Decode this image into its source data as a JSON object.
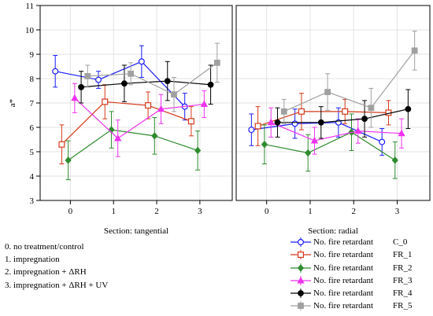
{
  "chart_data": {
    "type": "line",
    "ylabel": "a*",
    "ylim": [
      3,
      11
    ],
    "yticks": [
      "3",
      "4",
      "5",
      "6",
      "7",
      "8",
      "9",
      "10",
      "11"
    ],
    "x_categories": [
      "0",
      "1",
      "2",
      "3"
    ],
    "panels": [
      {
        "xlabel": "Section: tangential",
        "series": [
          {
            "group": "C_0",
            "color": "#1a1aff",
            "marker": "circle",
            "x": [
              -0.35,
              0.65,
              1.65,
              2.65
            ],
            "y": [
              8.3,
              7.95,
              8.7,
              6.85
            ],
            "err": [
              0.65,
              0.35,
              0.65,
              0.55
            ]
          },
          {
            "group": "FR_1",
            "color": "#d43a1a",
            "marker": "square",
            "x": [
              -0.2,
              0.8,
              1.8,
              2.8
            ],
            "y": [
              5.3,
              7.05,
              6.9,
              6.25
            ],
            "err": [
              0.8,
              0.7,
              0.55,
              0.6
            ]
          },
          {
            "group": "FR_2",
            "color": "#2e8b2e",
            "marker": "diamond",
            "x": [
              -0.05,
              0.95,
              1.95,
              2.95
            ],
            "y": [
              4.65,
              5.9,
              5.65,
              5.05
            ],
            "err": [
              0.8,
              0.75,
              0.75,
              0.8
            ]
          },
          {
            "group": "FR_3",
            "color": "#ee33ee",
            "marker": "triangle",
            "x": [
              0.1,
              1.1,
              2.1,
              3.1
            ],
            "y": [
              7.2,
              5.55,
              6.75,
              6.95
            ],
            "err": [
              0.6,
              0.75,
              0.6,
              0.55
            ]
          },
          {
            "group": "FR_4",
            "color": "#000000",
            "marker": "circle-filled",
            "x": [
              0.25,
              1.25,
              2.25,
              3.25
            ],
            "y": [
              7.65,
              7.8,
              7.9,
              7.75
            ],
            "err": [
              0.65,
              0.75,
              0.8,
              0.8
            ]
          },
          {
            "group": "FR_5",
            "color": "#a0a0a0",
            "marker": "square-filled",
            "x": [
              0.4,
              1.4,
              2.4,
              3.4
            ],
            "y": [
              8.1,
              8.2,
              7.35,
              8.65
            ],
            "err": [
              0.45,
              0.45,
              0.7,
              0.8
            ]
          }
        ]
      },
      {
        "xlabel": "Section: radial",
        "series": [
          {
            "group": "C_0",
            "color": "#1a1aff",
            "marker": "circle",
            "x": [
              -0.35,
              0.65,
              1.65,
              2.65
            ],
            "y": [
              5.9,
              6.15,
              6.2,
              5.4
            ],
            "err": [
              0.65,
              0.6,
              0.6,
              0.55
            ]
          },
          {
            "group": "FR_1",
            "color": "#d43a1a",
            "marker": "square",
            "x": [
              -0.2,
              0.8,
              1.8,
              2.8
            ],
            "y": [
              6.05,
              6.65,
              6.65,
              6.6
            ],
            "err": [
              0.8,
              0.75,
              0.5,
              0.5
            ]
          },
          {
            "group": "FR_2",
            "color": "#2e8b2e",
            "marker": "diamond",
            "x": [
              -0.05,
              0.95,
              1.95,
              2.95
            ],
            "y": [
              5.3,
              4.95,
              5.8,
              4.65
            ],
            "err": [
              0.8,
              0.75,
              0.75,
              0.75
            ]
          },
          {
            "group": "FR_3",
            "color": "#ee33ee",
            "marker": "triangle",
            "x": [
              0.1,
              1.1,
              2.1,
              3.1
            ],
            "y": [
              6.2,
              5.45,
              5.85,
              5.75
            ],
            "err": [
              0.6,
              0.55,
              0.5,
              0.6
            ]
          },
          {
            "group": "FR_4",
            "color": "#000000",
            "marker": "circle-filled",
            "x": [
              0.25,
              1.25,
              2.25,
              3.25
            ],
            "y": [
              6.2,
              6.2,
              6.35,
              6.75
            ],
            "err": [
              0.6,
              0.65,
              0.75,
              0.8
            ]
          },
          {
            "group": "FR_5",
            "color": "#a0a0a0",
            "marker": "square-filled",
            "x": [
              0.4,
              1.4,
              2.4,
              3.4
            ],
            "y": [
              6.65,
              7.45,
              6.8,
              9.15
            ],
            "err": [
              0.5,
              0.75,
              0.8,
              0.8
            ]
          }
        ]
      }
    ]
  },
  "notes": [
    "0. no treatment/control",
    "1. impregnation",
    "2. impregnation + ΔRH",
    "3. impregnation + ΔRH + UV"
  ],
  "legend": [
    {
      "label": "No. fire retardant",
      "group": "C_0",
      "color": "#1a1aff",
      "marker": "circle"
    },
    {
      "label": "No. fire retardant",
      "group": "FR_1",
      "color": "#d43a1a",
      "marker": "square"
    },
    {
      "label": "No. fire retardant",
      "group": "FR_2",
      "color": "#2e8b2e",
      "marker": "diamond"
    },
    {
      "label": "No. fire retardant",
      "group": "FR_3",
      "color": "#ee33ee",
      "marker": "triangle"
    },
    {
      "label": "No. fire retardant",
      "group": "FR_4",
      "color": "#000000",
      "marker": "circle-filled"
    },
    {
      "label": "No. fire retardant",
      "group": "FR_5",
      "color": "#a0a0a0",
      "marker": "square-filled"
    }
  ]
}
